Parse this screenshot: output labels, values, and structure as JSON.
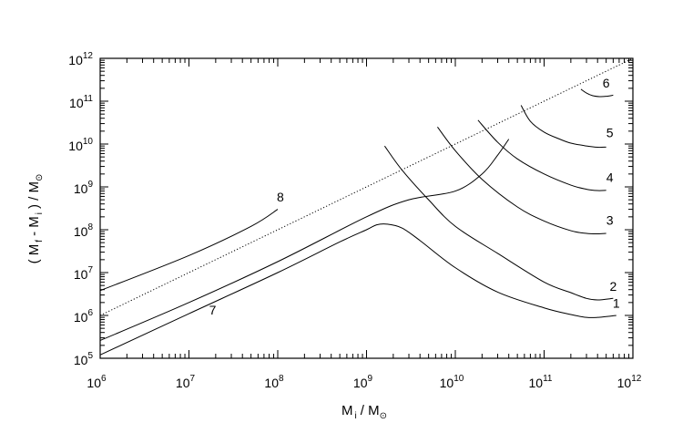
{
  "chart_data": {
    "type": "line",
    "x_scale": "log",
    "y_scale": "log",
    "xlim": [
      1000000.0,
      1000000000000.0
    ],
    "ylim": [
      100000.0,
      1000000000000.0
    ],
    "grid": false,
    "xlabel": {
      "main": "M",
      "sub": "i",
      "unit": "/ M",
      "unit_sub": "⊙"
    },
    "ylabel": {
      "open": "( M",
      "sub1": "f",
      "mid": "- M",
      "sub2": "i",
      "close": ") / M",
      "unit_sub": "⊙"
    },
    "x_ticks": [
      {
        "base": "10",
        "exp": "6",
        "value": 1000000.0
      },
      {
        "base": "10",
        "exp": "7",
        "value": 10000000.0
      },
      {
        "base": "10",
        "exp": "8",
        "value": 100000000.0
      },
      {
        "base": "10",
        "exp": "9",
        "value": 1000000000.0
      },
      {
        "base": "10",
        "exp": "10",
        "value": 10000000000.0
      },
      {
        "base": "10",
        "exp": "11",
        "value": 100000000000.0
      },
      {
        "base": "10",
        "exp": "12",
        "value": 1000000000000.0
      }
    ],
    "y_ticks": [
      {
        "base": "10",
        "exp": "5",
        "value": 100000.0
      },
      {
        "base": "10",
        "exp": "6",
        "value": 1000000.0
      },
      {
        "base": "10",
        "exp": "7",
        "value": 10000000.0
      },
      {
        "base": "10",
        "exp": "8",
        "value": 100000000.0
      },
      {
        "base": "10",
        "exp": "9",
        "value": 1000000000.0
      },
      {
        "base": "10",
        "exp": "10",
        "value": 10000000000.0
      },
      {
        "base": "10",
        "exp": "11",
        "value": 100000000000.0
      },
      {
        "base": "10",
        "exp": "12",
        "value": 1000000000000.0
      }
    ],
    "reference_line": {
      "style": "dotted",
      "x": [
        1000000.0,
        1000000000000.0
      ],
      "y": [
        1000000.0,
        1000000000000.0
      ]
    },
    "series": [
      {
        "label": "1",
        "x": [
          1000000.0,
          10000000.0,
          100000000.0,
          500000000.0,
          1000000000.0,
          1300000000.0,
          1700000000.0,
          2500000000.0,
          4000000000.0,
          10000000000.0,
          30000000000.0,
          100000000000.0,
          200000000000.0,
          300000000000.0,
          400000000000.0,
          650000000000.0
        ],
        "y": [
          120000.0,
          1100000.0,
          10000000.0,
          52000000.0,
          100000000.0,
          130000000.0,
          135000000.0,
          110000000.0,
          56000000.0,
          13000000.0,
          3500000.0,
          1500000.0,
          1050000.0,
          900000.0,
          900000.0,
          1000000.0
        ]
      },
      {
        "label": "2",
        "x": [
          1600000000.0,
          2500000000.0,
          5000000000.0,
          10000000000.0,
          30000000000.0,
          100000000000.0,
          200000000000.0,
          300000000000.0,
          400000000000.0,
          600000000000.0
        ],
        "y": [
          9000000000.0,
          2500000000.0,
          500000000.0,
          120000000.0,
          28000000.0,
          6000000.0,
          3400000.0,
          2500000.0,
          2300000.0,
          2500000.0
        ]
      },
      {
        "label": "3",
        "x": [
          6300000000.0,
          10000000000.0,
          20000000000.0,
          50000000000.0,
          100000000000.0,
          200000000000.0,
          300000000000.0,
          400000000000.0,
          500000000000.0
        ],
        "y": [
          25000000000.0,
          7000000000.0,
          1500000000.0,
          340000000.0,
          160000000.0,
          95000000.0,
          82000000.0,
          80000000.0,
          82000000.0
        ]
      },
      {
        "label": "4",
        "x": [
          18000000000.0,
          30000000000.0,
          50000000000.0,
          100000000000.0,
          200000000000.0,
          300000000000.0,
          400000000000.0,
          500000000000.0
        ],
        "y": [
          36000000000.0,
          11000000000.0,
          4500000000.0,
          2000000000.0,
          1100000000.0,
          880000000.0,
          820000000.0,
          830000000.0
        ]
      },
      {
        "label": "5",
        "x": [
          55000000000.0,
          70000000000.0,
          100000000000.0,
          150000000000.0,
          200000000000.0,
          300000000000.0,
          400000000000.0,
          500000000000.0
        ],
        "y": [
          80000000000.0,
          34000000000.0,
          19000000000.0,
          13000000000.0,
          10500000000.0,
          9000000000.0,
          8400000000.0,
          8500000000.0
        ]
      },
      {
        "label": "6",
        "x": [
          260000000000.0,
          300000000000.0,
          350000000000.0,
          420000000000.0,
          500000000000.0,
          600000000000.0
        ],
        "y": [
          190000000000.0,
          155000000000.0,
          135000000000.0,
          128000000000.0,
          130000000000.0,
          138000000000.0
        ]
      },
      {
        "label": "7",
        "x": [
          1000000.0,
          10000000.0,
          100000000.0,
          1000000000.0,
          3000000000.0,
          10000000000.0,
          20000000000.0,
          30000000000.0,
          40000000000.0
        ],
        "y": [
          260000.0,
          2000000.0,
          18000000.0,
          200000000.0,
          500000000.0,
          800000000.0,
          2000000000.0,
          5500000000.0,
          13000000000.0
        ]
      },
      {
        "label": "8",
        "x": [
          1000000.0,
          10000000.0,
          50000000.0,
          100000000.0
        ],
        "y": [
          3800000.0,
          25000000.0,
          120000000.0,
          300000000.0
        ]
      }
    ],
    "label_anchor": [
      {
        "label": "1",
        "x": 650000000000.0,
        "y": 1500000.0
      },
      {
        "label": "2",
        "x": 600000000000.0,
        "y": 3800000.0
      },
      {
        "label": "3",
        "x": 550000000000.0,
        "y": 130000000.0
      },
      {
        "label": "4",
        "x": 550000000000.0,
        "y": 1300000000.0
      },
      {
        "label": "5",
        "x": 550000000000.0,
        "y": 14500000000.0
      },
      {
        "label": "6",
        "x": 500000000000.0,
        "y": 210000000000.0
      },
      {
        "label": "7",
        "x": 18500000.0,
        "y": 1050000.0
      },
      {
        "label": "8",
        "x": 107000000.0,
        "y": 460000000.0
      }
    ]
  }
}
